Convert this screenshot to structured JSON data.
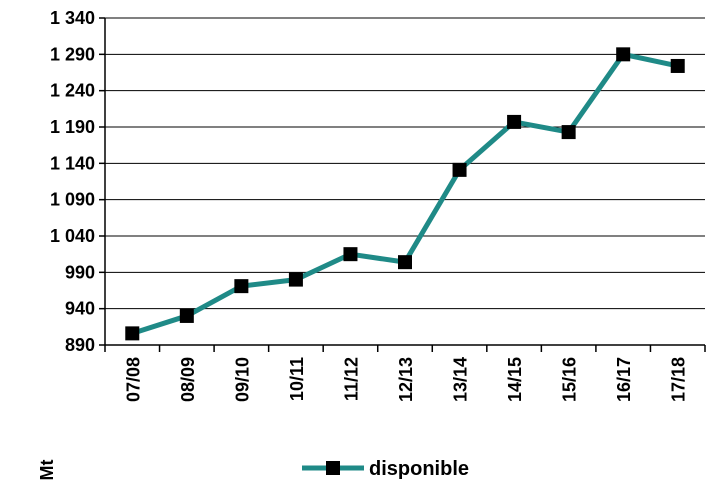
{
  "chart_data": {
    "type": "line",
    "categories": [
      "07/08",
      "08/09",
      "09/10",
      "10/11",
      "11/12",
      "12/13",
      "13/14",
      "14/15",
      "15/16",
      "16/17",
      "17/18"
    ],
    "series": [
      {
        "name": "disponible",
        "values": [
          906,
          930,
          971,
          980,
          1015,
          1004,
          1131,
          1197,
          1183,
          1290,
          1274
        ],
        "color": "#1f8a87",
        "marker": "square"
      }
    ],
    "ylabel": "Mt",
    "ylim": [
      890,
      1340
    ],
    "yticks": [
      890,
      940,
      990,
      1040,
      1090,
      1140,
      1190,
      1240,
      1290,
      1340
    ],
    "ytick_labels": [
      "890",
      "940",
      "990",
      "1 040",
      "1 090",
      "1 140",
      "1 190",
      "1 240",
      "1 290",
      "1 340"
    ],
    "grid": true,
    "legend": "bottom-center"
  }
}
